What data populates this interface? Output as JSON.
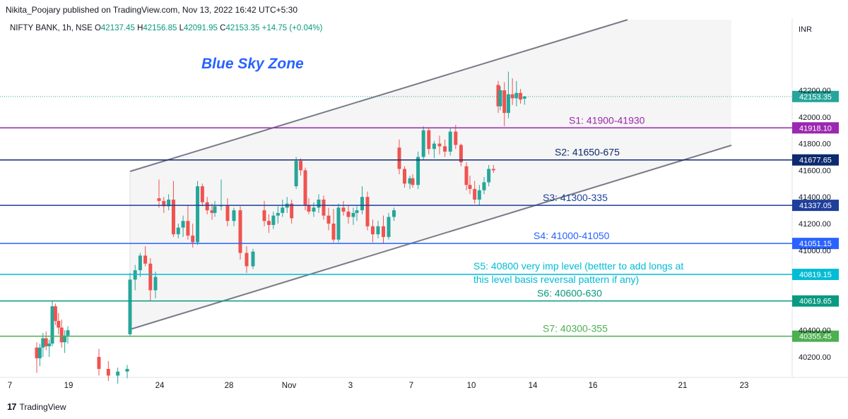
{
  "header": {
    "published": "Nikita_Poojary published on TradingView.com, Nov 13, 2022 16:42 UTC+5:30"
  },
  "symbol": {
    "name": "NIFTY BANK, 1h, NSE",
    "open_label": "O",
    "open": "42137.45",
    "high_label": "H",
    "high": "42156.85",
    "low_label": "L",
    "low": "42091.95",
    "close_label": "C",
    "close": "42153.35",
    "change": "+14.75 (+0.04%)"
  },
  "footer": {
    "brand": "TradingView"
  },
  "chart_data": {
    "type": "candlestick",
    "currency_label": "INR",
    "y_ticks": [
      "42200.00",
      "42000.00",
      "41800.00",
      "41600.00",
      "41400.00",
      "41200.00",
      "41000.00",
      "40400.00",
      "40200.00"
    ],
    "x_ticks": [
      "7",
      "19",
      "24",
      "28",
      "Nov",
      "3",
      "7",
      "10",
      "14",
      "16",
      "21",
      "23"
    ],
    "ylim": [
      40080,
      42420
    ],
    "title_annotation": {
      "text": "Blue Sky Zone",
      "color": "#2962ff"
    },
    "levels": [
      {
        "label": "S1: 41900-41930",
        "price": 41918.1,
        "price_label": "41918.10",
        "color": "#9c27b0"
      },
      {
        "label": "S2: 41650-675",
        "price": 41677.65,
        "price_label": "41677.65",
        "color": "#0d2a6e"
      },
      {
        "label": "S3: 41300-335",
        "price": 41337.05,
        "price_label": "41337.05",
        "color": "#1e3f9a"
      },
      {
        "label": "S4: 41000-41050",
        "price": 41051.15,
        "price_label": "41051.15",
        "color": "#2962ff"
      },
      {
        "label": "S5: 40800 very imp level (bettter to add longs at",
        "label_line2": "this level basis reversal pattern if any)",
        "price": 40819.15,
        "price_label": "40819.15",
        "color": "#00bcd4"
      },
      {
        "label": "S6: 40600-630",
        "price": 40619.65,
        "price_label": "40619.65",
        "color": "#089981"
      },
      {
        "label": "S7: 40300-355",
        "price": 40355.45,
        "price_label": "40355.45",
        "color": "#4caf50"
      }
    ],
    "last_price": {
      "price": 42153.35,
      "price_label": "42153.35",
      "color": "#26a69a"
    },
    "colors": {
      "up": "#26a69a",
      "down": "#ef5350",
      "channel": "#787b86",
      "channel_fill": "#f5f5f5"
    },
    "candles": [
      [
        40270,
        40310,
        40080,
        40190
      ],
      [
        40190,
        40300,
        40130,
        40270
      ],
      [
        40270,
        40380,
        40200,
        40340
      ],
      [
        40340,
        40390,
        40250,
        40280
      ],
      [
        40280,
        40330,
        40200,
        40300
      ],
      [
        40300,
        40620,
        40280,
        40580
      ],
      [
        40580,
        40600,
        40440,
        40470
      ],
      [
        40470,
        40530,
        40370,
        40420
      ],
      [
        40420,
        40480,
        40270,
        40310
      ],
      [
        40310,
        40400,
        40230,
        40360
      ],
      [
        40360,
        40430,
        40300,
        40400
      ],
      [
        40200,
        40260,
        40060,
        40110
      ],
      [
        40110,
        40170,
        40020,
        40060
      ],
      [
        40060,
        40120,
        40000,
        40090
      ],
      [
        40090,
        40140,
        40040,
        40110
      ],
      [
        40370,
        40830,
        40360,
        40780
      ],
      [
        40780,
        40890,
        40700,
        40850
      ],
      [
        40850,
        40980,
        40800,
        40960
      ],
      [
        40960,
        41030,
        40880,
        40900
      ],
      [
        40900,
        40940,
        40620,
        40700
      ],
      [
        40700,
        40840,
        40640,
        40800
      ],
      [
        41390,
        41530,
        41320,
        41370
      ],
      [
        41370,
        41400,
        41280,
        41330
      ],
      [
        41330,
        41420,
        41300,
        41380
      ],
      [
        41380,
        41520,
        41100,
        41120
      ],
      [
        41120,
        41200,
        41090,
        41170
      ],
      [
        41170,
        41260,
        41100,
        41220
      ],
      [
        41220,
        41340,
        41080,
        41110
      ],
      [
        41110,
        41200,
        41020,
        41060
      ],
      [
        41060,
        41520,
        41040,
        41480
      ],
      [
        41480,
        41500,
        41330,
        41360
      ],
      [
        41360,
        41400,
        41270,
        41300
      ],
      [
        41300,
        41350,
        41230,
        41280
      ],
      [
        41280,
        41370,
        41250,
        41330
      ],
      [
        41330,
        41530,
        41300,
        41340
      ],
      [
        41340,
        41390,
        41180,
        41220
      ],
      [
        41220,
        41320,
        41180,
        41300
      ],
      [
        41300,
        41330,
        40930,
        40980
      ],
      [
        40980,
        41030,
        40830,
        40880
      ],
      [
        40880,
        41010,
        40860,
        40990
      ],
      [
        41300,
        41370,
        41180,
        41220
      ],
      [
        41220,
        41270,
        41130,
        41190
      ],
      [
        41190,
        41290,
        41160,
        41260
      ],
      [
        41260,
        41330,
        41200,
        41280
      ],
      [
        41280,
        41380,
        41250,
        41320
      ],
      [
        41320,
        41400,
        41280,
        41350
      ],
      [
        41350,
        41380,
        41200,
        41240
      ],
      [
        41480,
        41700,
        41460,
        41670
      ],
      [
        41670,
        41690,
        41560,
        41600
      ],
      [
        41600,
        41620,
        41300,
        41340
      ],
      [
        41340,
        41390,
        41270,
        41290
      ],
      [
        41290,
        41360,
        41250,
        41320
      ],
      [
        41320,
        41420,
        41280,
        41380
      ],
      [
        41380,
        41410,
        41230,
        41260
      ],
      [
        41260,
        41320,
        41150,
        41200
      ],
      [
        41200,
        41310,
        41060,
        41080
      ],
      [
        41080,
        41350,
        41060,
        41320
      ],
      [
        41320,
        41370,
        41260,
        41290
      ],
      [
        41290,
        41340,
        41200,
        41250
      ],
      [
        41250,
        41320,
        41190,
        41280
      ],
      [
        41280,
        41330,
        41220,
        41300
      ],
      [
        41300,
        41480,
        41270,
        41400
      ],
      [
        41400,
        41440,
        41150,
        41180
      ],
      [
        41180,
        41230,
        41060,
        41120
      ],
      [
        41120,
        41220,
        41090,
        41180
      ],
      [
        41180,
        41260,
        41050,
        41100
      ],
      [
        41100,
        41280,
        41080,
        41250
      ],
      [
        41250,
        41320,
        41220,
        41300
      ],
      [
        41770,
        41830,
        41570,
        41610
      ],
      [
        41610,
        41630,
        41470,
        41500
      ],
      [
        41500,
        41560,
        41460,
        41540
      ],
      [
        41540,
        41570,
        41470,
        41490
      ],
      [
        41490,
        41740,
        41460,
        41700
      ],
      [
        41700,
        41930,
        41680,
        41900
      ],
      [
        41900,
        41920,
        41720,
        41760
      ],
      [
        41760,
        41820,
        41690,
        41800
      ],
      [
        41800,
        41860,
        41720,
        41780
      ],
      [
        41780,
        41830,
        41700,
        41740
      ],
      [
        41740,
        41920,
        41710,
        41890
      ],
      [
        41890,
        41940,
        41760,
        41790
      ],
      [
        41790,
        41800,
        41630,
        41660
      ],
      [
        41630,
        41660,
        41450,
        41490
      ],
      [
        41490,
        41560,
        41420,
        41460
      ],
      [
        41460,
        41520,
        41350,
        41380
      ],
      [
        41380,
        41490,
        41340,
        41450
      ],
      [
        41450,
        41550,
        41420,
        41510
      ],
      [
        41510,
        41640,
        41480,
        41610
      ],
      [
        41610,
        41640,
        41580,
        41600
      ],
      [
        42240,
        42270,
        42030,
        42080
      ],
      [
        42080,
        42230,
        42050,
        42200
      ],
      [
        42200,
        42260,
        41930,
        42030
      ],
      [
        42030,
        42340,
        41990,
        42170
      ],
      [
        42170,
        42290,
        42090,
        42140
      ],
      [
        42140,
        42270,
        42080,
        42180
      ],
      [
        42180,
        42210,
        42100,
        42130
      ],
      [
        42137.45,
        42156.85,
        42091.95,
        42153.35
      ]
    ]
  }
}
